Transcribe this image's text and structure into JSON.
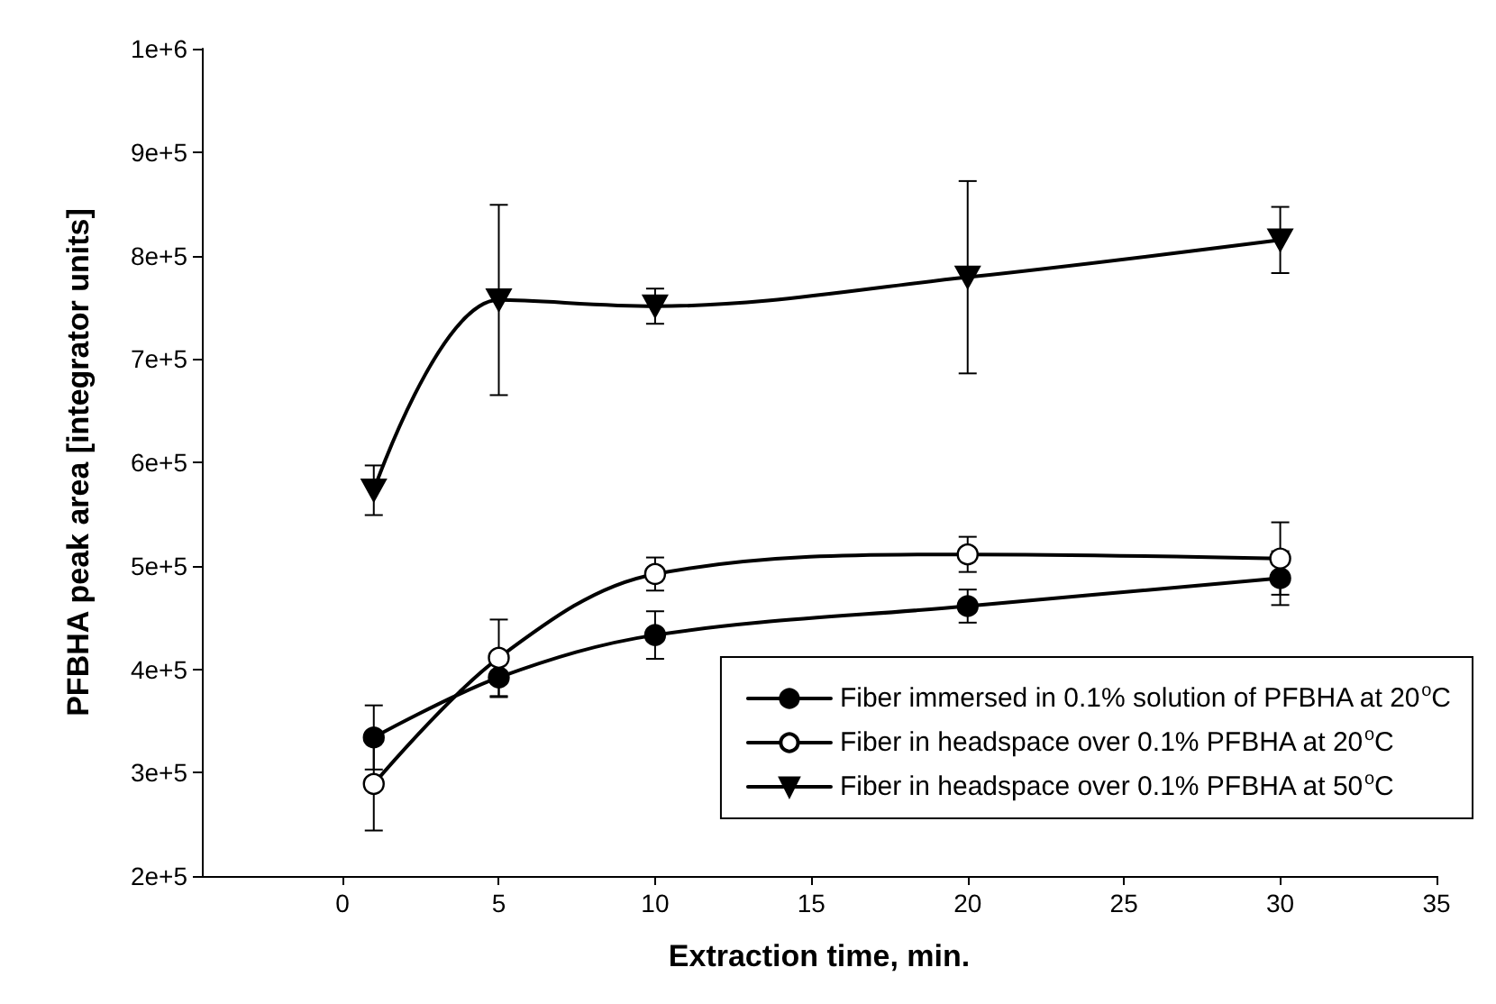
{
  "chart_data": {
    "type": "line",
    "xlabel": "Extraction time, min.",
    "ylabel": "PFBHA peak area [integrator units]",
    "x": [
      1,
      5,
      10,
      20,
      30
    ],
    "xlim": [
      -4.5,
      35
    ],
    "xticks": [
      0,
      5,
      10,
      15,
      20,
      25,
      30,
      35
    ],
    "ylim": [
      200000,
      1000000
    ],
    "yticks": [
      {
        "value": 200000,
        "label": "2e+5"
      },
      {
        "value": 300000,
        "label": "3e+5"
      },
      {
        "value": 400000,
        "label": "4e+5"
      },
      {
        "value": 500000,
        "label": "5e+5"
      },
      {
        "value": 600000,
        "label": "6e+5"
      },
      {
        "value": 700000,
        "label": "7e+5"
      },
      {
        "value": 800000,
        "label": "8e+5"
      },
      {
        "value": 900000,
        "label": "9e+5"
      },
      {
        "value": 1000000,
        "label": "1e+6"
      }
    ],
    "grid": false,
    "legend": "bottom right",
    "line_style": "solid",
    "series": [
      {
        "name": "Fiber immersed in 0.1% solution of PFBHA at 20$^{o}$C",
        "color": "#000000",
        "marker": "circle",
        "values": [
          334000,
          392000,
          433000,
          461000,
          488000
        ],
        "errors": [
          31000,
          19000,
          23000,
          16000,
          26000
        ]
      },
      {
        "name": "Fiber in headspace over 0.1% PFBHA at 20$^{o}$C",
        "color": "#000000",
        "marker": "circle",
        "colors": [
          "#ffffff",
          "#ffffff",
          "#ffffff",
          "#ffffff",
          "#ffffff"
        ],
        "values": [
          289000,
          411000,
          492000,
          511000,
          507000
        ],
        "errors": [
          45000,
          37000,
          16000,
          17000,
          35000
        ]
      },
      {
        "name": "Fiber in headspace over 0.1% PFBHA at 50$^{o}$C",
        "color": "#000000",
        "marker": "triangle",
        "values": [
          573000,
          757000,
          751000,
          779000,
          815000
        ],
        "errors": [
          24000,
          92000,
          17000,
          93000,
          32000
        ]
      }
    ]
  }
}
